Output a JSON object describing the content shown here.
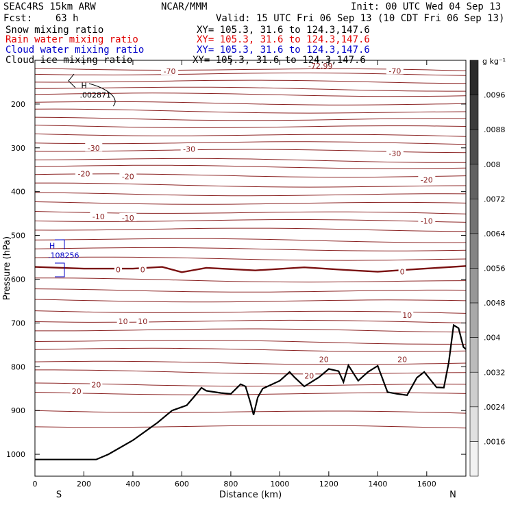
{
  "header": {
    "model": "SEAC4RS 15km ARW",
    "org": "NCAR/MMM",
    "init": "Init: 00 UTC Wed 04 Sep 13",
    "fcst": "Fcst:    63 h",
    "valid": "Valid: 15 UTC Fri 06 Sep 13 (10 CDT Fri 06 Sep 13)",
    "fields": [
      {
        "name": "Snow mixing ratio",
        "xy": "XY= 105.3, 31.6 to 124.3,147.6",
        "color": "#000000"
      },
      {
        "name": "Rain water mixing ratio",
        "xy": "XY= 105.3, 31.6 to 124.3,147.6",
        "color": "#e00000"
      },
      {
        "name": "Cloud water mixing ratio",
        "xy": "XY= 105.3, 31.6 to 124.3,147.6",
        "color": "#0000c8"
      },
      {
        "name": "Cloud ice mixing ratio",
        "xy": "XY= 105.3, 31.6 to 124.3,147.6",
        "color": "#000000"
      }
    ]
  },
  "chart_data": {
    "type": "cross-section contour",
    "xlabel": "Distance (km)",
    "ylabel": "Pressure (hPa)",
    "xlim": [
      0,
      1760
    ],
    "ylim": [
      1050,
      100
    ],
    "x_ticks": [
      0,
      200,
      400,
      600,
      800,
      1000,
      1200,
      1400,
      1600
    ],
    "y_ticks": [
      200,
      300,
      400,
      500,
      600,
      700,
      800,
      900,
      1000
    ],
    "y_tick_labels_note": "100 label partly hidden by header",
    "left_end": "S",
    "right_end": "N",
    "colorbar": {
      "unit": "g kg⁻¹",
      "levels": [
        ".0016",
        ".0024",
        ".0032",
        ".004",
        ".0048",
        ".0056",
        ".0064",
        ".0072",
        ".008",
        ".0088",
        ".0096"
      ],
      "max_color": "#2a2a2a",
      "min_color": "#f2f2f2"
    },
    "temperature_contours": {
      "color": "#8b2323",
      "interval_c": 5,
      "labels": [
        {
          "text": "-70",
          "x": 550,
          "p": 125
        },
        {
          "text": "-70",
          "x": 1470,
          "p": 124
        },
        {
          "text": "-30",
          "x": 240,
          "p": 300
        },
        {
          "text": "-30",
          "x": 630,
          "p": 303
        },
        {
          "text": "-30",
          "x": 1470,
          "p": 313
        },
        {
          "text": "-20",
          "x": 200,
          "p": 359
        },
        {
          "text": "-20",
          "x": 380,
          "p": 365
        },
        {
          "text": "-20",
          "x": 1600,
          "p": 373
        },
        {
          "text": "-10",
          "x": 260,
          "p": 457
        },
        {
          "text": "-10",
          "x": 380,
          "p": 460
        },
        {
          "text": "-10",
          "x": 1600,
          "p": 467
        },
        {
          "text": "0",
          "x": 340,
          "p": 578
        },
        {
          "text": "0",
          "x": 440,
          "p": 578
        },
        {
          "text": "0",
          "x": 1500,
          "p": 583
        },
        {
          "text": "10",
          "x": 360,
          "p": 696
        },
        {
          "text": "10",
          "x": 440,
          "p": 696
        },
        {
          "text": "10",
          "x": 1520,
          "p": 682
        },
        {
          "text": "20",
          "x": 250,
          "p": 841
        },
        {
          "text": "20",
          "x": 170,
          "p": 856
        },
        {
          "text": "20",
          "x": 1180,
          "p": 783
        },
        {
          "text": "20",
          "x": 1500,
          "p": 783
        },
        {
          "text": "20",
          "x": 1120,
          "p": 821
        }
      ],
      "zero_isotherm": [
        {
          "x": 0,
          "p": 572
        },
        {
          "x": 200,
          "p": 576
        },
        {
          "x": 400,
          "p": 576
        },
        {
          "x": 520,
          "p": 572
        },
        {
          "x": 600,
          "p": 584
        },
        {
          "x": 700,
          "p": 574
        },
        {
          "x": 900,
          "p": 580
        },
        {
          "x": 1100,
          "p": 573
        },
        {
          "x": 1300,
          "p": 580
        },
        {
          "x": 1400,
          "p": 583
        },
        {
          "x": 1560,
          "p": 577
        },
        {
          "x": 1760,
          "p": 570
        }
      ]
    },
    "terrain": [
      {
        "x": 0,
        "p": 1012
      },
      {
        "x": 250,
        "p": 1012
      },
      {
        "x": 300,
        "p": 1000
      },
      {
        "x": 400,
        "p": 968
      },
      {
        "x": 500,
        "p": 928
      },
      {
        "x": 560,
        "p": 900
      },
      {
        "x": 620,
        "p": 888
      },
      {
        "x": 660,
        "p": 862
      },
      {
        "x": 680,
        "p": 848
      },
      {
        "x": 700,
        "p": 855
      },
      {
        "x": 760,
        "p": 860
      },
      {
        "x": 800,
        "p": 862
      },
      {
        "x": 840,
        "p": 840
      },
      {
        "x": 860,
        "p": 845
      },
      {
        "x": 880,
        "p": 882
      },
      {
        "x": 893,
        "p": 910
      },
      {
        "x": 910,
        "p": 870
      },
      {
        "x": 930,
        "p": 850
      },
      {
        "x": 1000,
        "p": 832
      },
      {
        "x": 1040,
        "p": 812
      },
      {
        "x": 1060,
        "p": 824
      },
      {
        "x": 1100,
        "p": 845
      },
      {
        "x": 1160,
        "p": 824
      },
      {
        "x": 1200,
        "p": 805
      },
      {
        "x": 1240,
        "p": 810
      },
      {
        "x": 1260,
        "p": 835
      },
      {
        "x": 1280,
        "p": 797
      },
      {
        "x": 1320,
        "p": 832
      },
      {
        "x": 1360,
        "p": 812
      },
      {
        "x": 1400,
        "p": 798
      },
      {
        "x": 1440,
        "p": 858
      },
      {
        "x": 1480,
        "p": 862
      },
      {
        "x": 1520,
        "p": 865
      },
      {
        "x": 1560,
        "p": 825
      },
      {
        "x": 1590,
        "p": 812
      },
      {
        "x": 1640,
        "p": 847
      },
      {
        "x": 1670,
        "p": 848
      },
      {
        "x": 1690,
        "p": 790
      },
      {
        "x": 1710,
        "p": 705
      },
      {
        "x": 1730,
        "p": 712
      },
      {
        "x": 1750,
        "p": 755
      },
      {
        "x": 1760,
        "p": 760
      }
    ],
    "maxima": [
      {
        "marker": "H",
        "value": ".002871",
        "x": 200,
        "p": 176,
        "color": "#000000"
      },
      {
        "marker": "H",
        "value": ".108256",
        "x": 70,
        "p": 542,
        "color": "#0000c8"
      }
    ],
    "top_value_label": "-72.99"
  }
}
